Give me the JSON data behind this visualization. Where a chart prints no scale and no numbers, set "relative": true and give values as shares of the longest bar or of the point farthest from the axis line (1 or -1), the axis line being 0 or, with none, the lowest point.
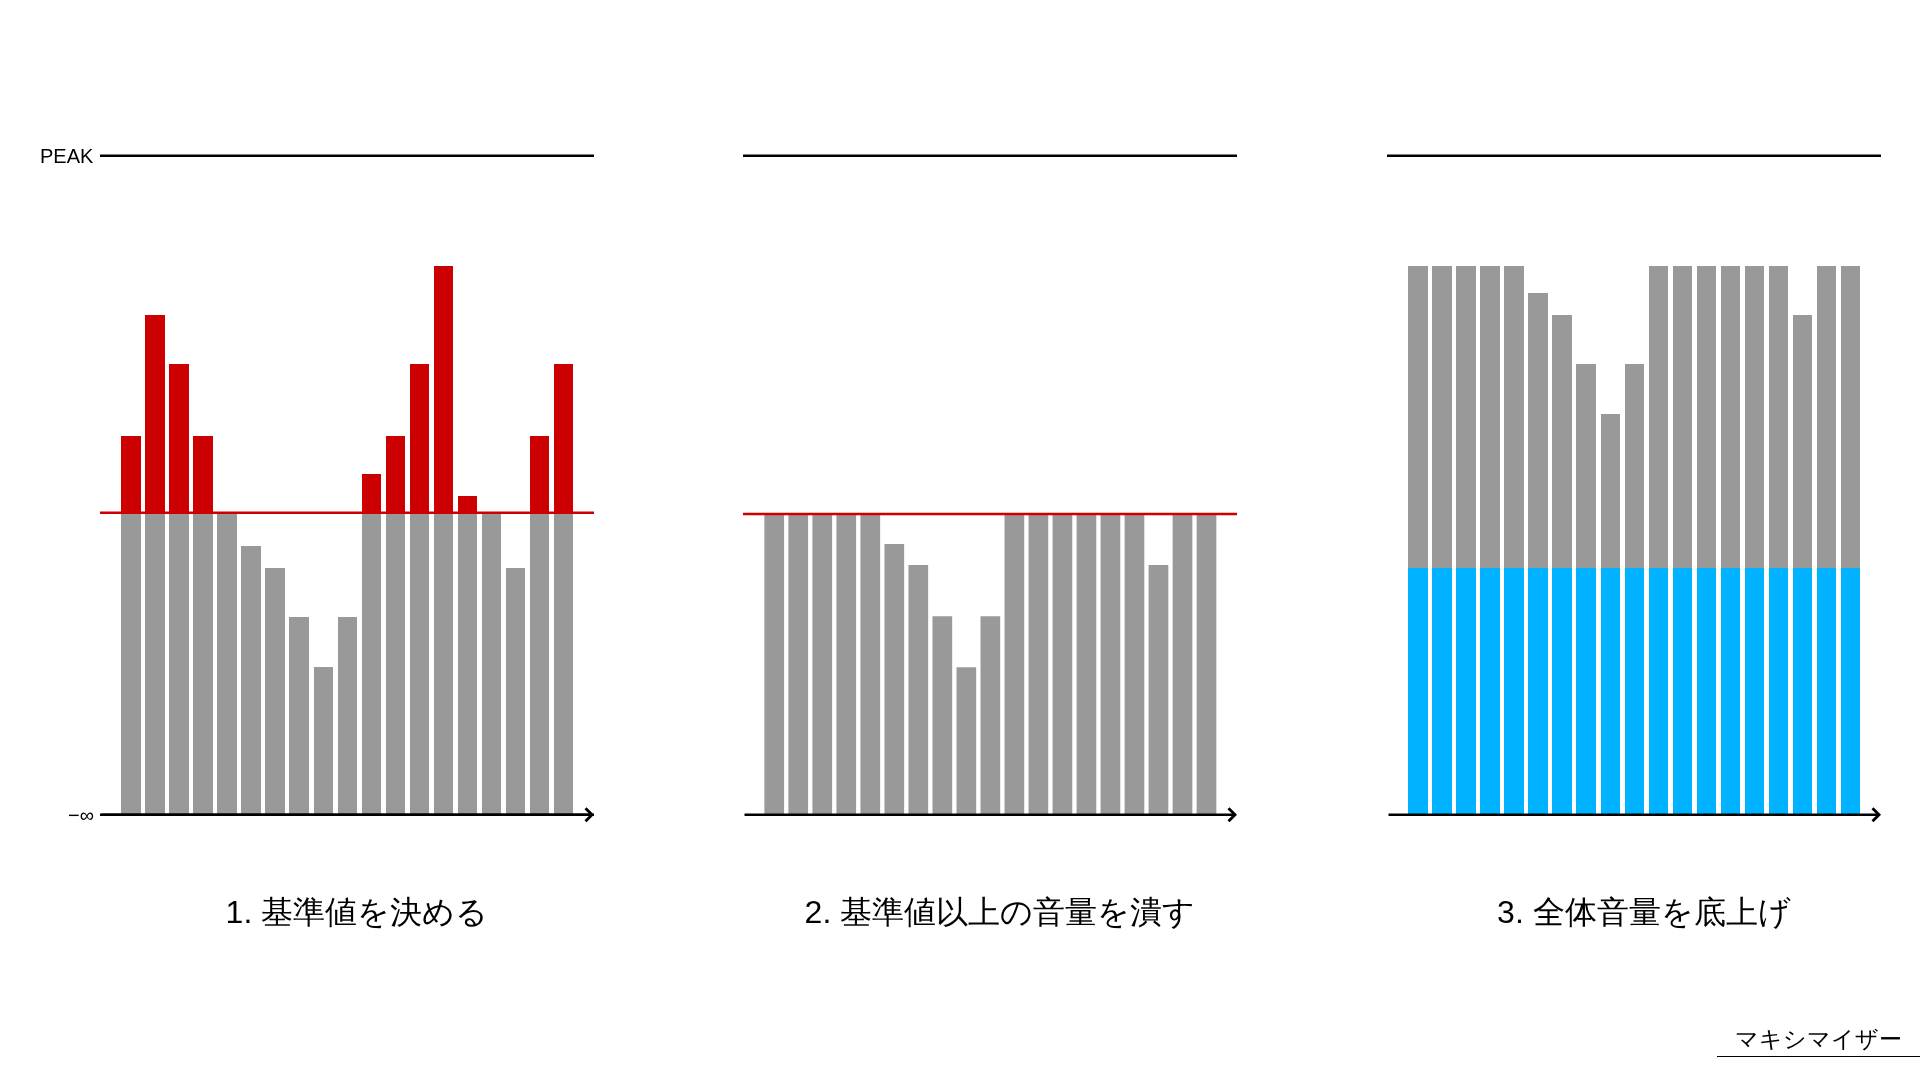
{
  "chart_data": [
    {
      "type": "bar",
      "title": "1. 基準値を決める",
      "categories": [
        null,
        null,
        null,
        null,
        null,
        null,
        null,
        null,
        null,
        null,
        null,
        null,
        null,
        null,
        null,
        null,
        null,
        null,
        null
      ],
      "stacked": true,
      "relative": true,
      "series": [
        {
          "color": "#999999",
          "values": [
            0.55,
            0.55,
            0.55,
            0.55,
            0.55,
            0.49,
            0.45,
            0.36,
            0.27,
            0.36,
            0.55,
            0.55,
            0.55,
            0.55,
            0.55,
            0.55,
            0.45,
            0.55,
            0.55
          ]
        },
        {
          "color": "#cc0000",
          "values": [
            0.14,
            0.36,
            0.27,
            0.14,
            null,
            null,
            null,
            null,
            null,
            null,
            0.07,
            0.14,
            0.27,
            0.45,
            0.03,
            null,
            null,
            0.14,
            0.27
          ]
        }
      ],
      "ref_lines": [
        {
          "axis": "y",
          "value": 1.2,
          "label": "PEAK",
          "color": "#000000"
        },
        {
          "axis": "y",
          "value": 0.55,
          "color": "#cc0000"
        },
        {
          "axis": "y",
          "value": 0,
          "label": "−∞",
          "color": "#000000"
        }
      ]
    },
    {
      "type": "bar",
      "title": "2. 基準値以上の音量を潰す",
      "categories": [
        null,
        null,
        null,
        null,
        null,
        null,
        null,
        null,
        null,
        null,
        null,
        null,
        null,
        null,
        null,
        null,
        null,
        null,
        null
      ],
      "relative": true,
      "color": "#999999",
      "values": [
        1,
        1,
        1,
        1,
        1,
        0.9,
        0.83,
        0.66,
        0.49,
        0.66,
        1,
        1,
        1,
        1,
        1,
        1,
        0.83,
        1,
        1
      ],
      "ref_lines": [
        {
          "axis": "y",
          "value": 2.19,
          "color": "#000000"
        },
        {
          "axis": "y",
          "value": 1,
          "color": "#cc0000"
        }
      ]
    },
    {
      "type": "bar",
      "title": "3. 全体音量を底上げ",
      "categories": [
        null,
        null,
        null,
        null,
        null,
        null,
        null,
        null,
        null,
        null,
        null,
        null,
        null,
        null,
        null,
        null,
        null,
        null,
        null
      ],
      "stacked": true,
      "relative": true,
      "series": [
        {
          "color": "#00b2ff",
          "values": [
            0.45,
            0.45,
            0.45,
            0.45,
            0.45,
            0.45,
            0.45,
            0.45,
            0.45,
            0.45,
            0.45,
            0.45,
            0.45,
            0.45,
            0.45,
            0.45,
            0.45,
            0.45,
            0.45
          ]
        },
        {
          "color": "#999999",
          "values": [
            0.55,
            0.55,
            0.55,
            0.55,
            0.55,
            0.5,
            0.46,
            0.37,
            0.28,
            0.37,
            0.55,
            0.55,
            0.55,
            0.55,
            0.55,
            0.55,
            0.46,
            0.55,
            0.55
          ]
        }
      ],
      "ref_lines": [
        {
          "axis": "y",
          "value": 1.2,
          "color": "#000000"
        }
      ],
      "annotations": [
        "マキシマイザー"
      ]
    }
  ]
}
